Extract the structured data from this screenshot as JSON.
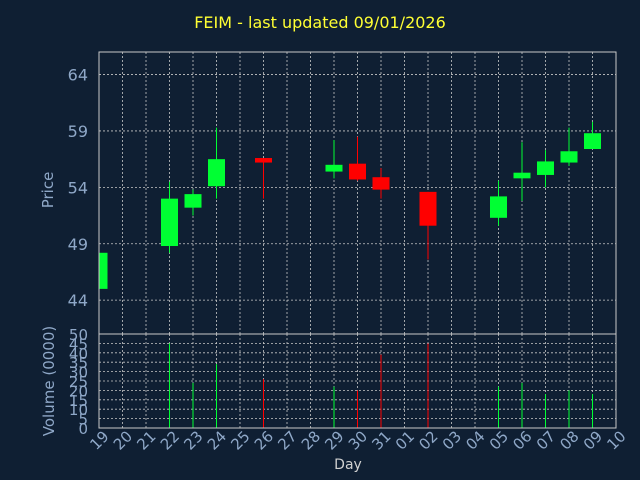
{
  "title": "FEIM - last updated 09/01/2026",
  "chart_data": [
    {
      "type": "candlestick",
      "ylabel": "Price",
      "ylim": [
        41,
        66
      ],
      "yticks": [
        44,
        49,
        54,
        59,
        64
      ],
      "grid": true,
      "colors": {
        "up": "#00ff33",
        "down": "#ff0000"
      },
      "x_labels": [
        "19",
        "20",
        "21",
        "22",
        "23",
        "24",
        "25",
        "26",
        "27",
        "28",
        "29",
        "30",
        "31",
        "01",
        "02",
        "03",
        "04",
        "05",
        "06",
        "07",
        "08",
        "09",
        "10"
      ],
      "candles": [
        {
          "day": "19",
          "open": 45.0,
          "close": 48.2,
          "high": 48.2,
          "low": 45.0
        },
        {
          "day": "22",
          "open": 48.8,
          "close": 53.0,
          "high": 54.5,
          "low": 48.2
        },
        {
          "day": "23",
          "open": 52.2,
          "close": 53.4,
          "high": 53.8,
          "low": 51.5
        },
        {
          "day": "24",
          "open": 54.1,
          "close": 56.5,
          "high": 59.3,
          "low": 53.0
        },
        {
          "day": "26",
          "open": 56.6,
          "close": 56.2,
          "high": 56.6,
          "low": 53.0
        },
        {
          "day": "29",
          "open": 55.4,
          "close": 56.0,
          "high": 58.2,
          "low": 54.8
        },
        {
          "day": "30",
          "open": 56.1,
          "close": 54.7,
          "high": 58.5,
          "low": 54.6
        },
        {
          "day": "31",
          "open": 54.9,
          "close": 53.8,
          "high": 55.7,
          "low": 53.0
        },
        {
          "day": "02",
          "open": 53.6,
          "close": 50.6,
          "high": 53.6,
          "low": 47.6
        },
        {
          "day": "05",
          "open": 51.3,
          "close": 53.2,
          "high": 54.6,
          "low": 50.6
        },
        {
          "day": "06",
          "open": 54.8,
          "close": 55.3,
          "high": 58.0,
          "low": 52.8
        },
        {
          "day": "07",
          "open": 55.1,
          "close": 56.3,
          "high": 57.3,
          "low": 54.0
        },
        {
          "day": "08",
          "open": 56.2,
          "close": 57.2,
          "high": 59.3,
          "low": 55.9
        },
        {
          "day": "09",
          "open": 57.4,
          "close": 58.8,
          "high": 59.8,
          "low": 57.4
        }
      ]
    },
    {
      "type": "bar",
      "ylabel": "Volume (0000)",
      "ylim": [
        0,
        50
      ],
      "yticks": [
        0,
        5,
        10,
        15,
        20,
        25,
        30,
        35,
        40,
        45,
        50
      ],
      "grid": true,
      "xlabel": "Day",
      "volumes": [
        {
          "day": "22",
          "value": 45,
          "dir": "up"
        },
        {
          "day": "23",
          "value": 24,
          "dir": "up"
        },
        {
          "day": "24",
          "value": 34,
          "dir": "up"
        },
        {
          "day": "26",
          "value": 26,
          "dir": "down"
        },
        {
          "day": "29",
          "value": 22,
          "dir": "up"
        },
        {
          "day": "30",
          "value": 20,
          "dir": "down"
        },
        {
          "day": "31",
          "value": 39,
          "dir": "down"
        },
        {
          "day": "02",
          "value": 45,
          "dir": "down"
        },
        {
          "day": "05",
          "value": 22,
          "dir": "up"
        },
        {
          "day": "06",
          "value": 24,
          "dir": "up"
        },
        {
          "day": "07",
          "value": 18,
          "dir": "up"
        },
        {
          "day": "08",
          "value": 20,
          "dir": "up"
        },
        {
          "day": "09",
          "value": 18,
          "dir": "up"
        }
      ]
    }
  ]
}
